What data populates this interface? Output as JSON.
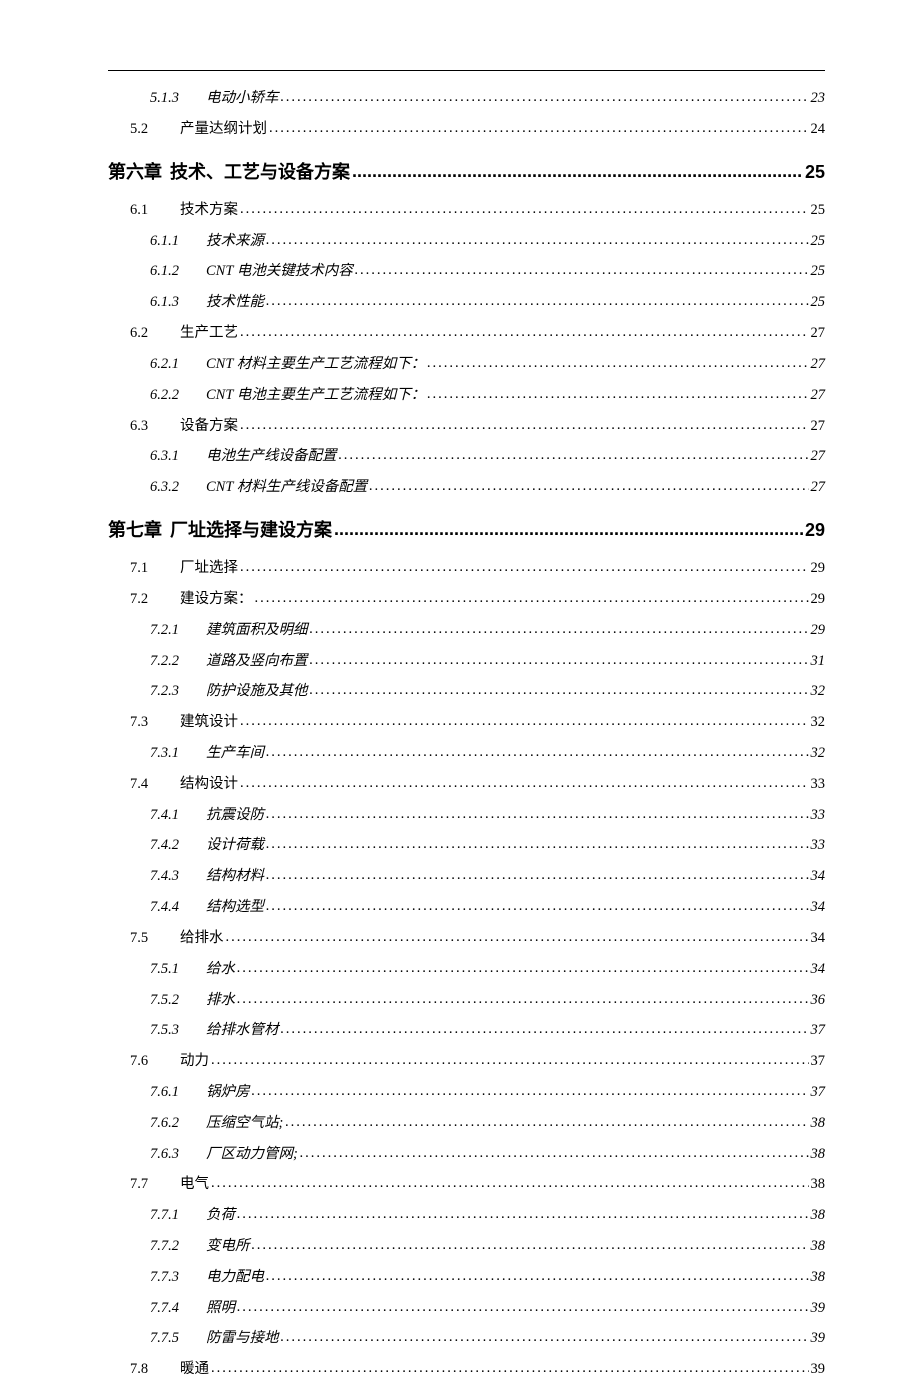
{
  "toc": {
    "entries": [
      {
        "level": "subsection",
        "num": "5.1.3",
        "label": "电动小轿车",
        "page": "23"
      },
      {
        "level": "section",
        "num": "5.2",
        "label": "产量达纲计划",
        "page": "24"
      },
      {
        "level": "chapter",
        "num": "第六章",
        "label": "技术、工艺与设备方案",
        "page": "25"
      },
      {
        "level": "section",
        "num": "6.1",
        "label": "技术方案",
        "page": "25"
      },
      {
        "level": "subsection",
        "num": "6.1.1",
        "label": "技术来源",
        "page": "25"
      },
      {
        "level": "subsection",
        "num": "6.1.2",
        "label": "CNT 电池关键技术内容",
        "page": "25"
      },
      {
        "level": "subsection",
        "num": "6.1.3",
        "label": "技术性能",
        "page": "25"
      },
      {
        "level": "section",
        "num": "6.2",
        "label": "生产工艺",
        "page": "27"
      },
      {
        "level": "subsection",
        "num": "6.2.1",
        "label": "CNT 材料主要生产工艺流程如下：",
        "page": "27"
      },
      {
        "level": "subsection",
        "num": "6.2.2",
        "label": "CNT 电池主要生产工艺流程如下：",
        "page": "27"
      },
      {
        "level": "section",
        "num": "6.3",
        "label": "设备方案",
        "page": "27"
      },
      {
        "level": "subsection",
        "num": "6.3.1",
        "label": "电池生产线设备配置",
        "page": "27"
      },
      {
        "level": "subsection",
        "num": "6.3.2",
        "label": "CNT 材料生产线设备配置",
        "page": "27"
      },
      {
        "level": "chapter",
        "num": "第七章",
        "label": "厂址选择与建设方案",
        "page": "29"
      },
      {
        "level": "section",
        "num": "7.1",
        "label": "厂址选择",
        "page": "29"
      },
      {
        "level": "section",
        "num": "7.2",
        "label": "建设方案：",
        "page": "29"
      },
      {
        "level": "subsection",
        "num": "7.2.1",
        "label": "建筑面积及明细",
        "page": "29"
      },
      {
        "level": "subsection",
        "num": "7.2.2",
        "label": "道路及竖向布置",
        "page": "31"
      },
      {
        "level": "subsection",
        "num": "7.2.3",
        "label": "防护设施及其他",
        "page": "32"
      },
      {
        "level": "section",
        "num": "7.3",
        "label": "建筑设计",
        "page": "32"
      },
      {
        "level": "subsection",
        "num": "7.3.1",
        "label": "生产车间",
        "page": "32"
      },
      {
        "level": "section",
        "num": "7.4",
        "label": "结构设计",
        "page": "33"
      },
      {
        "level": "subsection",
        "num": "7.4.1",
        "label": "抗震设防",
        "page": "33"
      },
      {
        "level": "subsection",
        "num": "7.4.2",
        "label": "设计荷载",
        "page": "33"
      },
      {
        "level": "subsection",
        "num": "7.4.3",
        "label": "结构材料",
        "page": "34"
      },
      {
        "level": "subsection",
        "num": "7.4.4",
        "label": "结构选型",
        "page": "34"
      },
      {
        "level": "section",
        "num": "7.5",
        "label": "给排水",
        "page": "34"
      },
      {
        "level": "subsection",
        "num": "7.5.1",
        "label": "给水",
        "page": "34"
      },
      {
        "level": "subsection",
        "num": "7.5.2",
        "label": "排水",
        "page": "36"
      },
      {
        "level": "subsection",
        "num": "7.5.3",
        "label": "给排水管材",
        "page": "37"
      },
      {
        "level": "section",
        "num": "7.6",
        "label": "动力",
        "page": "37"
      },
      {
        "level": "subsection",
        "num": "7.6.1",
        "label": "锅炉房",
        "page": "37"
      },
      {
        "level": "subsection",
        "num": "7.6.2",
        "label": "压缩空气站;",
        "page": "38"
      },
      {
        "level": "subsection",
        "num": "7.6.3",
        "label": "厂区动力管网;",
        "page": "38"
      },
      {
        "level": "section",
        "num": "7.7",
        "label": "电气",
        "page": "38"
      },
      {
        "level": "subsection",
        "num": "7.7.1",
        "label": "负荷",
        "page": "38"
      },
      {
        "level": "subsection",
        "num": "7.7.2",
        "label": "变电所",
        "page": "38"
      },
      {
        "level": "subsection",
        "num": "7.7.3",
        "label": "电力配电",
        "page": "38"
      },
      {
        "level": "subsection",
        "num": "7.7.4",
        "label": "照明",
        "page": "39"
      },
      {
        "level": "subsection",
        "num": "7.7.5",
        "label": "防雷与接地",
        "page": "39"
      },
      {
        "level": "section",
        "num": "7.8",
        "label": "暖通",
        "page": "39"
      }
    ]
  }
}
